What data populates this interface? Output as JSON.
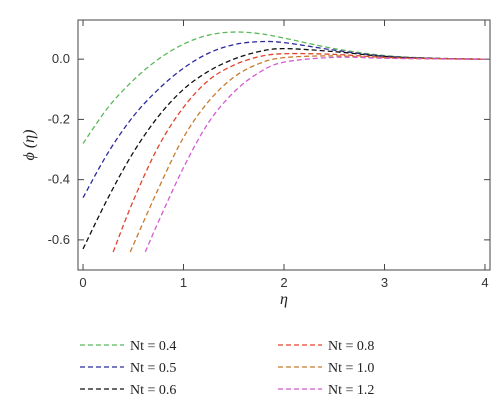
{
  "chart_data": {
    "type": "line",
    "title": "",
    "xlabel": "η",
    "ylabel": "ϕ (η)",
    "xlim": [
      -0.05,
      4.05
    ],
    "ylim": [
      -0.7,
      0.13
    ],
    "x_ticks": [
      0,
      1,
      2,
      3,
      4
    ],
    "x_tick_labels": [
      "0",
      "1",
      "2",
      "3",
      "4"
    ],
    "y_ticks": [
      0.0,
      -0.2,
      -0.4,
      -0.6
    ],
    "y_tick_labels": [
      "0.0",
      "-0.2",
      "-0.4",
      "-0.6"
    ],
    "grid": false,
    "legend_position": "bottom",
    "series": [
      {
        "name": "Nt = 0.4",
        "color": "#5cb85c",
        "dash": "dashed",
        "x": [
          0,
          0.25,
          0.5,
          0.75,
          1.0,
          1.25,
          1.5,
          1.75,
          2.0,
          2.5,
          3.0,
          3.5,
          4.0
        ],
        "y": [
          -0.28,
          -0.16,
          -0.07,
          0.0,
          0.05,
          0.08,
          0.09,
          0.085,
          0.07,
          0.035,
          0.012,
          0.003,
          0.0
        ]
      },
      {
        "name": "Nt = 0.5",
        "color": "#2b2b9c",
        "dash": "dashed",
        "x": [
          0,
          0.25,
          0.5,
          0.75,
          1.0,
          1.25,
          1.5,
          1.75,
          2.0,
          2.5,
          3.0,
          3.5,
          4.0
        ],
        "y": [
          -0.46,
          -0.31,
          -0.19,
          -0.1,
          -0.03,
          0.02,
          0.048,
          0.058,
          0.055,
          0.03,
          0.01,
          0.003,
          0.0
        ]
      },
      {
        "name": "Nt = 0.6",
        "color": "#111111",
        "dash": "dashed",
        "x": [
          0,
          0.25,
          0.5,
          0.75,
          1.0,
          1.25,
          1.5,
          1.75,
          2.0,
          2.5,
          3.0,
          3.5,
          4.0
        ],
        "y": [
          -0.63,
          -0.46,
          -0.31,
          -0.19,
          -0.1,
          -0.04,
          0.0,
          0.025,
          0.035,
          0.025,
          0.009,
          0.002,
          0.0
        ]
      },
      {
        "name": "Nt = 0.8",
        "color": "#e0442a",
        "dash": "dashed",
        "x": [
          0.3,
          0.5,
          0.75,
          1.0,
          1.25,
          1.5,
          1.75,
          2.0,
          2.5,
          3.0,
          3.5,
          4.0
        ],
        "y": [
          -0.64,
          -0.47,
          -0.29,
          -0.16,
          -0.07,
          -0.02,
          0.008,
          0.018,
          0.016,
          0.006,
          0.002,
          0.0
        ]
      },
      {
        "name": "Nt = 1.0",
        "color": "#c87a2e",
        "dash": "dashed",
        "x": [
          0.47,
          0.75,
          1.0,
          1.25,
          1.5,
          1.75,
          2.0,
          2.5,
          3.0,
          3.5,
          4.0
        ],
        "y": [
          -0.64,
          -0.43,
          -0.26,
          -0.14,
          -0.06,
          -0.015,
          0.005,
          0.011,
          0.004,
          0.001,
          0.0
        ]
      },
      {
        "name": "Nt = 1.2",
        "color": "#d45bd4",
        "dash": "dashed",
        "x": [
          0.62,
          0.75,
          1.0,
          1.25,
          1.5,
          1.75,
          2.0,
          2.5,
          3.0,
          3.5,
          4.0
        ],
        "y": [
          -0.64,
          -0.54,
          -0.36,
          -0.21,
          -0.11,
          -0.045,
          -0.01,
          0.006,
          0.003,
          0.001,
          0.0
        ]
      }
    ]
  }
}
